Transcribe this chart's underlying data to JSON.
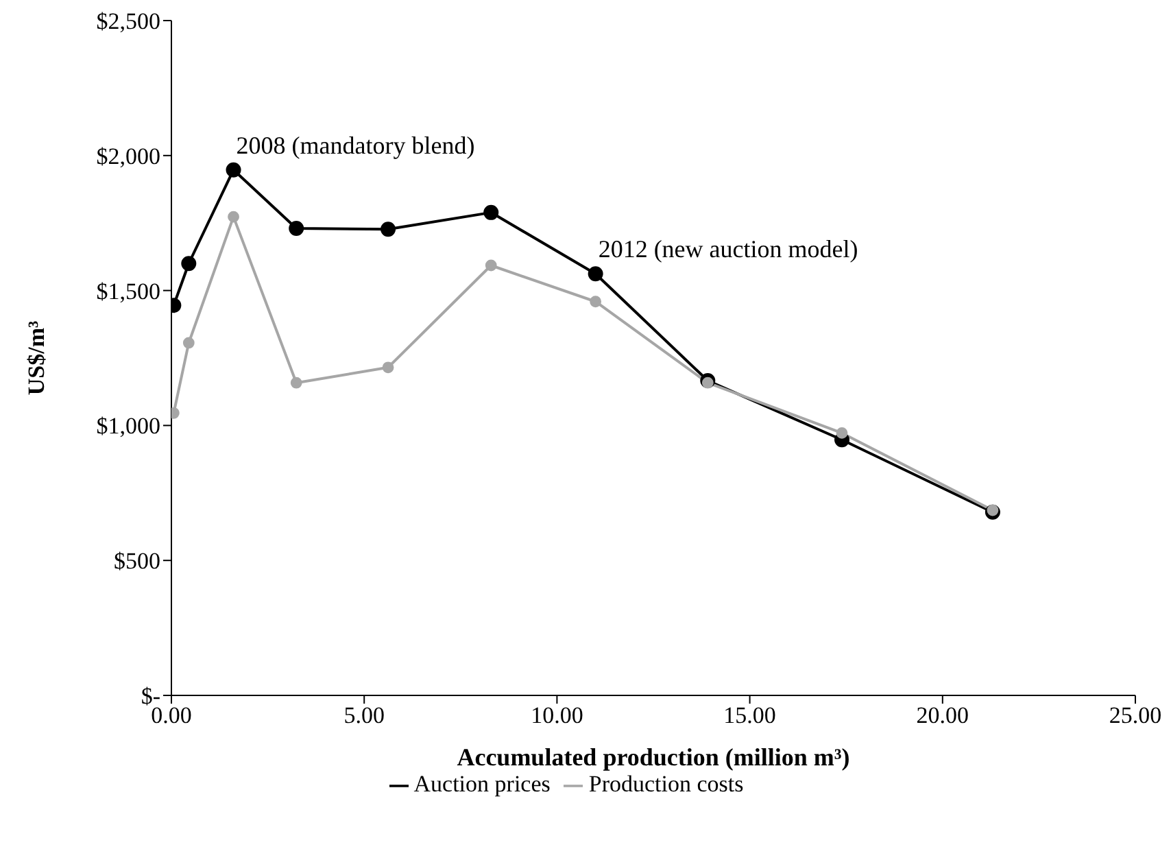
{
  "chart_data": {
    "type": "line",
    "xlabel": "Accumulated production  (million  m³)",
    "ylabel": "US$/m³",
    "x": [
      0.06,
      0.45,
      1.61,
      3.24,
      5.62,
      8.29,
      11.0,
      13.91,
      17.39,
      21.3
    ],
    "series": [
      {
        "name": "Auction prices",
        "color": "#000000",
        "values": [
          1445,
          1600,
          1947,
          1730,
          1727,
          1789,
          1562,
          1166,
          947,
          679
        ]
      },
      {
        "name": "Production costs",
        "color": "#a6a6a6",
        "values": [
          1046,
          1306,
          1773,
          1158,
          1215,
          1593,
          1459,
          1158,
          972,
          686
        ]
      }
    ],
    "xlim": [
      0,
      25
    ],
    "xticks": [
      {
        "value": 0,
        "label": "0.00"
      },
      {
        "value": 5,
        "label": "5.00"
      },
      {
        "value": 10,
        "label": "10.00"
      },
      {
        "value": 15,
        "label": "15.00"
      },
      {
        "value": 20,
        "label": "20.00"
      },
      {
        "value": 25,
        "label": "25.00"
      }
    ],
    "ylim": [
      0,
      2500
    ],
    "yticks": [
      {
        "value": 0,
        "label": "$-"
      },
      {
        "value": 500,
        "label": "$500"
      },
      {
        "value": 1000,
        "label": "$1,000"
      },
      {
        "value": 1500,
        "label": "$1,500"
      },
      {
        "value": 2000,
        "label": "$2,000"
      },
      {
        "value": 2500,
        "label": "$2,500"
      }
    ],
    "annotations": [
      {
        "text": "2008 (mandatory  blend)",
        "x": 1.61,
        "y": 1947
      },
      {
        "text": "2012 (new auction model)",
        "x": 11.0,
        "y": 1562
      }
    ],
    "grid": false,
    "legend": "bottom",
    "marker": "circle",
    "line_style": "solid"
  }
}
